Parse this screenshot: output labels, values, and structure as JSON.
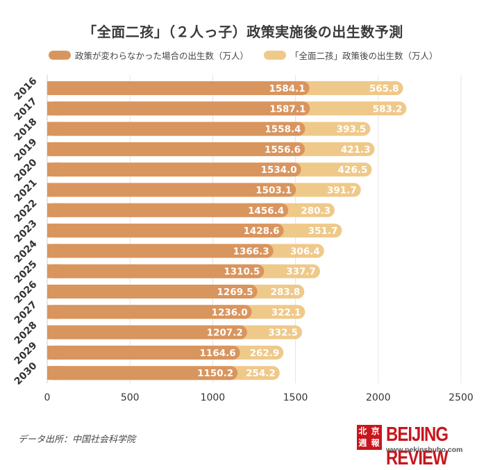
{
  "header": {
    "title": "「全面二孩」（２人っ子）政策実施後の出生数予測"
  },
  "legend": {
    "items": [
      {
        "label": "政策が変わらなかった場合の出生数（万人）",
        "color": "#d9955e"
      },
      {
        "label": "「全面二孩」政策後の出生数（万人）",
        "color": "#efc98a"
      }
    ]
  },
  "footer": {
    "source": "データ出所：中国社会科学院",
    "brand_seal": "北京週報",
    "brand_name": "BEIJING REVIEW",
    "brand_url": "www.pekinshuho.com"
  },
  "chart_data": {
    "type": "bar",
    "orientation": "horizontal",
    "stacked": true,
    "title": "「全面二孩」（２人っ子）政策実施後の出生数予測",
    "categories": [
      "2016",
      "2017",
      "2018",
      "2019",
      "2020",
      "2021",
      "2022",
      "2023",
      "2024",
      "2025",
      "2026",
      "2027",
      "2028",
      "2029",
      "2030"
    ],
    "series": [
      {
        "name": "政策が変わらなかった場合の出生数（万人）",
        "color": "#d9955e",
        "values": [
          1584.1,
          1587.1,
          1558.4,
          1556.6,
          1534.0,
          1503.1,
          1456.4,
          1428.6,
          1366.3,
          1310.5,
          1269.5,
          1236.0,
          1207.2,
          1164.6,
          1150.2
        ]
      },
      {
        "name": "「全面二孩」政策後の出生数（万人）",
        "color": "#efc98a",
        "values": [
          565.8,
          583.2,
          393.5,
          421.3,
          426.5,
          391.7,
          280.3,
          351.7,
          306.4,
          337.7,
          283.8,
          322.1,
          332.5,
          262.9,
          254.2
        ]
      }
    ],
    "xlim": [
      0,
      2500
    ],
    "xticks": [
      0,
      500,
      1000,
      1500,
      2000,
      2500
    ],
    "grid": true,
    "legend_position": "top"
  }
}
